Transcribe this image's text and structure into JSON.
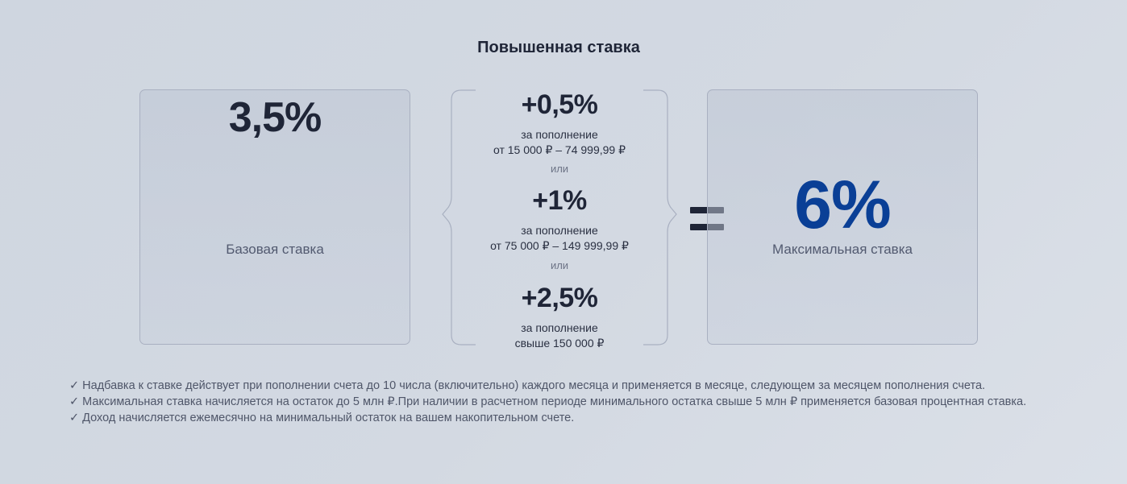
{
  "title": "Повышенная ставка",
  "base": {
    "value": "3,5%",
    "caption": "Базовая ставка"
  },
  "bonuses": [
    {
      "value": "+0,5%",
      "line1": "за пополнение",
      "line2": "от 15 000 ₽ – 74 999,99 ₽"
    },
    {
      "value": "+1%",
      "line1": "за пополнение",
      "line2": "от 75 000 ₽ – 149 999,99 ₽"
    },
    {
      "value": "+2,5%",
      "line1": "за пополнение",
      "line2": "свыше 150 000 ₽"
    }
  ],
  "or_label": "или",
  "max": {
    "value": "6%",
    "caption": "Максимальная ставка"
  },
  "notes": [
    "✓ Надбавка к ставке действует при пополнении счета до 10 числа (включительно) каждого месяца и применяется в месяце, следующем за месяцем пополнения счета.",
    "✓ Максимальная ставка начисляется на остаток до 5 млн ₽.При наличии в расчетном периоде минимального остатка свыше 5 млн ₽ применяется базовая процентная ставка.",
    "✓ Доход начисляется ежемесячно на минимальный остаток на вашем накопительном счете."
  ],
  "colors": {
    "accent": "#0a3f96",
    "text": "#1f2537",
    "border": "#a9b0c1"
  }
}
